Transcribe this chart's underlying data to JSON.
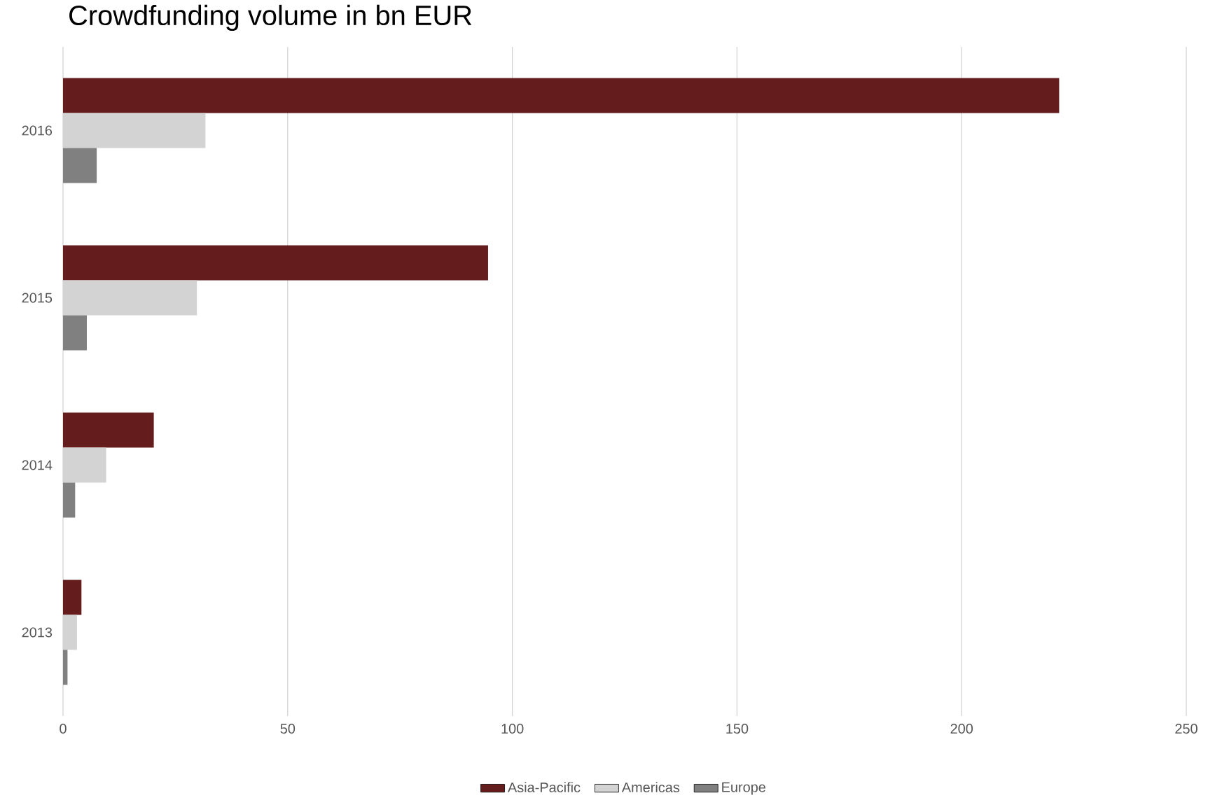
{
  "chart_data": {
    "type": "bar",
    "orientation": "horizontal",
    "title": "Crowdfunding volume in bn EUR",
    "categories": [
      "2016",
      "2015",
      "2014",
      "2013"
    ],
    "series": [
      {
        "name": "Asia-Pacific",
        "color": "#651c1c",
        "values": [
          221.7,
          94.6,
          20.2,
          4.1
        ]
      },
      {
        "name": "Americas",
        "color": "#d3d3d3",
        "values": [
          31.7,
          29.8,
          9.6,
          3.1
        ]
      },
      {
        "name": "Europe",
        "color": "#808080",
        "values": [
          7.5,
          5.3,
          2.7,
          1.0
        ]
      }
    ],
    "xlim": [
      0,
      250
    ],
    "xticks": [
      0,
      50,
      100,
      150,
      200,
      250
    ],
    "grid": "x",
    "legend": "bottom"
  }
}
